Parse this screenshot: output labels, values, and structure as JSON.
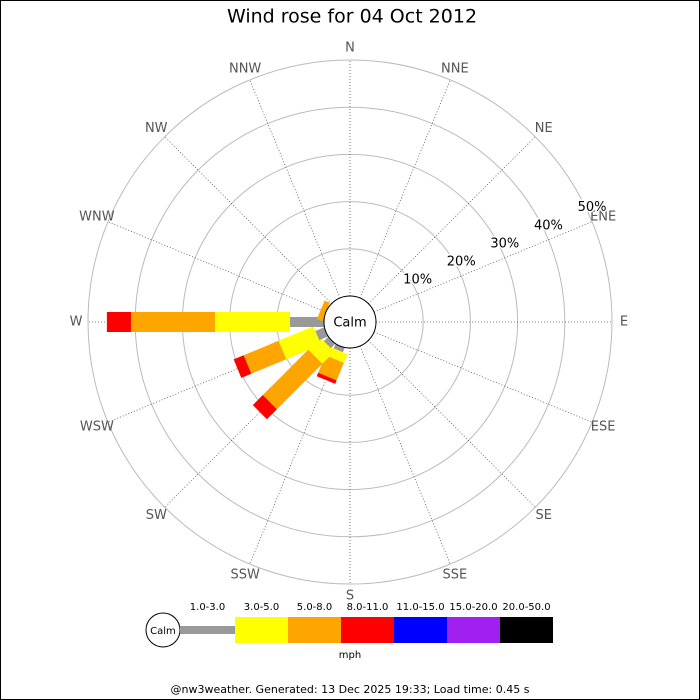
{
  "chart_data": {
    "type": "windrose",
    "title": "Wind rose for 04 Oct 2012",
    "directions": [
      "N",
      "NNE",
      "NE",
      "ENE",
      "E",
      "ESE",
      "SE",
      "SSE",
      "S",
      "SSW",
      "SW",
      "WSW",
      "W",
      "WNW",
      "NW",
      "NNW"
    ],
    "series": [
      {
        "name": "1.0-3.0",
        "color": "#999999",
        "values": [
          0,
          0,
          0,
          0,
          0,
          0,
          0,
          0,
          0,
          1,
          1.3,
          2,
          7.2,
          0,
          0,
          0
        ]
      },
      {
        "name": "3.0-5.0",
        "color": "#ffff00",
        "values": [
          0,
          0,
          0,
          0,
          0,
          0,
          0,
          0,
          0,
          2,
          3.6,
          8,
          15.9,
          0,
          0,
          0
        ]
      },
      {
        "name": "5.0-8.0",
        "color": "#ffa500",
        "values": [
          0,
          0,
          0,
          0,
          0,
          0,
          0,
          0,
          0,
          4,
          13.6,
          8,
          17.8,
          1.2,
          0,
          0
        ]
      },
      {
        "name": "8.0-11.0",
        "color": "#ff0000",
        "values": [
          0,
          0,
          0,
          0,
          0,
          0,
          0,
          0,
          0,
          0.8,
          3,
          2.3,
          5.1,
          0,
          0,
          0
        ]
      },
      {
        "name": "11.0-15.0",
        "color": "#0000ff",
        "values": [
          0,
          0,
          0,
          0,
          0,
          0,
          0,
          0,
          0,
          0,
          0,
          0,
          0,
          0,
          0,
          0
        ]
      },
      {
        "name": "15.0-20.0",
        "color": "#a020f0",
        "values": [
          0,
          0,
          0,
          0,
          0,
          0,
          0,
          0,
          0,
          0,
          0,
          0,
          0,
          0,
          0,
          0
        ]
      },
      {
        "name": "20.0-50.0",
        "color": "#000000",
        "values": [
          0,
          0,
          0,
          0,
          0,
          0,
          0,
          0,
          0,
          0,
          0,
          0,
          0,
          0,
          0,
          0
        ]
      }
    ],
    "ylim": [
      0,
      50
    ],
    "yticks": [
      {
        "value": 10,
        "label": "10%"
      },
      {
        "value": 20,
        "label": "20%"
      },
      {
        "value": 30,
        "label": "30%"
      },
      {
        "value": 40,
        "label": "40%"
      },
      {
        "value": 50,
        "label": "50%"
      }
    ],
    "calm_label": "Calm",
    "legend_title": "mph",
    "footer": "@nw3weather. Generated: 13 Dec 2025 19:33; Load time: 0.45 s"
  }
}
